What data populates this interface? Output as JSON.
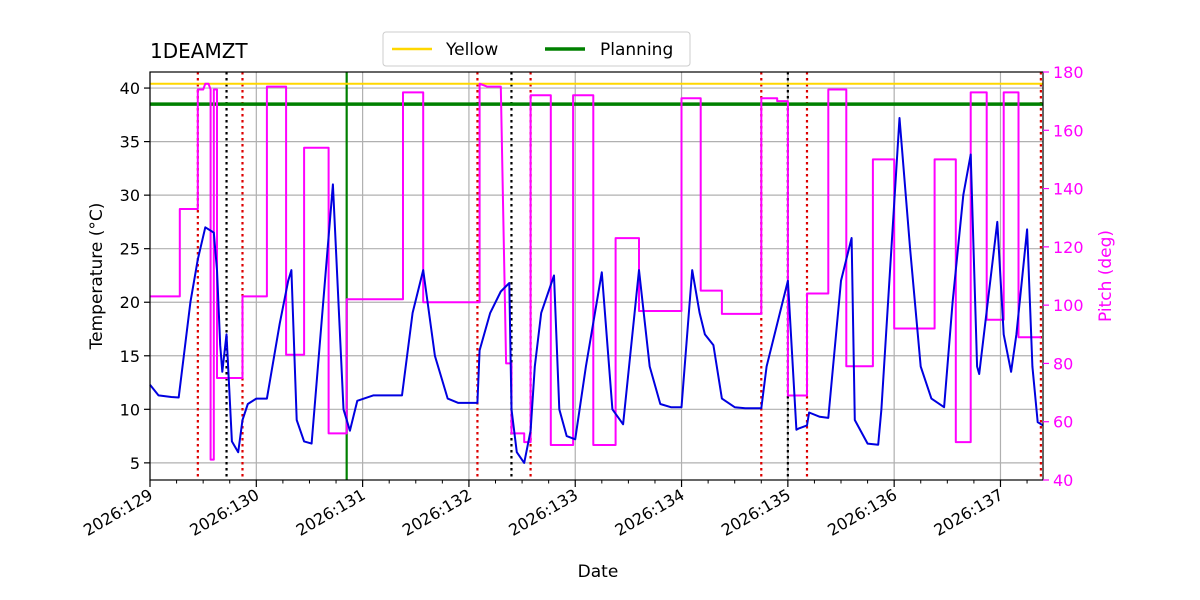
{
  "chart_data": {
    "type": "line",
    "title": "1DEAMZT",
    "xlabel": "Date",
    "ylabel": "Temperature ($^\\circ$C)",
    "y2label": "Pitch (deg)",
    "ylabel_display": "Temperature (°C)",
    "x_range_day": [
      129.0,
      137.4
    ],
    "ylim": [
      3.4,
      41.5
    ],
    "y2lim": [
      40,
      180
    ],
    "yticks": [
      5,
      10,
      15,
      20,
      25,
      30,
      35,
      40
    ],
    "y2ticks": [
      40,
      60,
      80,
      100,
      120,
      140,
      160,
      180
    ],
    "x_tick_labels": [
      "2026:129",
      "2026:130",
      "2026:131",
      "2026:132",
      "2026:133",
      "2026:134",
      "2026:135",
      "2026:136",
      "2026:137"
    ],
    "grid": true,
    "legend": {
      "placement": "top-center",
      "entries": [
        {
          "name": "Yellow",
          "color": "#ffd700"
        },
        {
          "name": "Planning",
          "color": "#008000"
        }
      ]
    },
    "limits": {
      "yellow": 40.4,
      "planning": 38.5
    },
    "colors": {
      "temperature": "#0000e0",
      "pitch": "#ff00ff",
      "red_marker": "#dd0000",
      "black_marker": "#000000",
      "planning_vertical": "#008000"
    },
    "vertical_markers": {
      "red_dotted_day": [
        129.45,
        129.87,
        132.08,
        132.58,
        134.75,
        135.18,
        137.38
      ],
      "black_dotted_day": [
        129.72,
        132.4,
        135.0
      ],
      "green_solid_day": [
        130.85
      ]
    },
    "series": [
      {
        "name": "Temperature",
        "axis": "left",
        "x_day": [
          129.0,
          129.08,
          129.2,
          129.27,
          129.38,
          129.45,
          129.52,
          129.6,
          129.63,
          129.66,
          129.68,
          129.72,
          129.77,
          129.83,
          129.87,
          129.92,
          130.0,
          130.1,
          130.22,
          130.3,
          130.33,
          130.38,
          130.45,
          130.52,
          130.72,
          130.82,
          130.88,
          130.95,
          131.1,
          131.37,
          131.47,
          131.57,
          131.68,
          131.8,
          131.9,
          132.08,
          132.1,
          132.2,
          132.3,
          132.38,
          132.4,
          132.45,
          132.52,
          132.58,
          132.62,
          132.68,
          132.8,
          132.85,
          132.92,
          133.0,
          133.1,
          133.25,
          133.35,
          133.45,
          133.6,
          133.7,
          133.8,
          133.9,
          134.0,
          134.1,
          134.17,
          134.22,
          134.3,
          134.38,
          134.5,
          134.6,
          134.75,
          134.8,
          135.0,
          135.08,
          135.1,
          135.18,
          135.2,
          135.3,
          135.38,
          135.5,
          135.6,
          135.63,
          135.75,
          135.85,
          135.88,
          136.05,
          136.15,
          136.25,
          136.35,
          136.47,
          136.55,
          136.65,
          136.72,
          136.78,
          136.8,
          136.97,
          137.03,
          137.1,
          137.15,
          137.25,
          137.3,
          137.35,
          137.4
        ],
        "y": [
          12.3,
          11.3,
          11.15,
          11.1,
          20.0,
          24.0,
          27.0,
          26.5,
          23.0,
          16.0,
          13.5,
          17.0,
          7.0,
          6.0,
          9.0,
          10.5,
          11.0,
          11.0,
          18.0,
          22.0,
          23.0,
          9.0,
          7.0,
          6.8,
          31.0,
          10.0,
          8.0,
          10.8,
          11.3,
          11.3,
          19.0,
          23.0,
          15.0,
          11.0,
          10.6,
          10.6,
          15.5,
          19.0,
          21.0,
          21.8,
          10.0,
          6.0,
          5.0,
          8.0,
          14.0,
          19.0,
          22.5,
          10.0,
          7.5,
          7.2,
          14.0,
          22.8,
          10.0,
          8.6,
          23.0,
          14.0,
          10.5,
          10.2,
          10.2,
          23.0,
          19.0,
          17.0,
          16.0,
          11.0,
          10.2,
          10.1,
          10.1,
          14.0,
          22.0,
          8.1,
          8.2,
          8.5,
          9.7,
          9.3,
          9.2,
          22.0,
          26.0,
          9.0,
          6.8,
          6.7,
          10.0,
          37.2,
          25.0,
          14.0,
          11.0,
          10.2,
          20.0,
          30.0,
          33.8,
          14.0,
          13.3,
          27.5,
          17.0,
          13.5,
          17.0,
          26.8,
          14.0,
          8.8,
          8.5
        ]
      },
      {
        "name": "Pitch",
        "axis": "right",
        "x_day": [
          129.0,
          129.28,
          129.28,
          129.45,
          129.45,
          129.5,
          129.52,
          129.55,
          129.57,
          129.57,
          129.6,
          129.6,
          129.63,
          129.63,
          129.68,
          129.68,
          129.72,
          129.72,
          129.87,
          129.87,
          130.1,
          130.1,
          130.28,
          130.28,
          130.45,
          130.45,
          130.68,
          130.68,
          130.85,
          130.85,
          131.38,
          131.38,
          131.57,
          131.57,
          132.1,
          132.1,
          132.17,
          132.3,
          132.35,
          132.35,
          132.4,
          132.4,
          132.52,
          132.52,
          132.58,
          132.58,
          132.77,
          132.77,
          132.98,
          132.98,
          133.17,
          133.17,
          133.38,
          133.38,
          133.6,
          133.6,
          134.0,
          134.0,
          134.18,
          134.18,
          134.38,
          134.38,
          134.75,
          134.75,
          134.9,
          134.9,
          135.0,
          135.0,
          135.18,
          135.18,
          135.38,
          135.38,
          135.55,
          135.55,
          135.8,
          135.8,
          136.0,
          136.0,
          136.38,
          136.38,
          136.58,
          136.58,
          136.72,
          136.72,
          136.87,
          136.87,
          137.03,
          137.03,
          137.17,
          137.17,
          137.38
        ],
        "y": [
          103,
          103,
          133,
          133,
          174,
          174,
          176,
          176,
          174,
          47,
          47,
          174,
          174,
          75,
          75,
          75,
          75,
          75,
          75,
          103,
          103,
          175,
          175,
          83,
          83,
          154,
          154,
          56,
          56,
          102,
          102,
          173,
          173,
          101,
          101,
          176,
          175,
          175,
          80,
          80,
          80,
          56,
          56,
          53,
          53,
          172,
          172,
          52,
          52,
          172,
          172,
          52,
          52,
          123,
          123,
          98,
          98,
          171,
          171,
          105,
          105,
          97,
          97,
          171,
          171,
          170,
          170,
          69,
          69,
          104,
          104,
          174,
          174,
          79,
          79,
          150,
          150,
          92,
          92,
          150,
          150,
          53,
          53,
          173,
          173,
          95,
          95,
          173,
          173,
          89,
          89
        ]
      }
    ]
  }
}
